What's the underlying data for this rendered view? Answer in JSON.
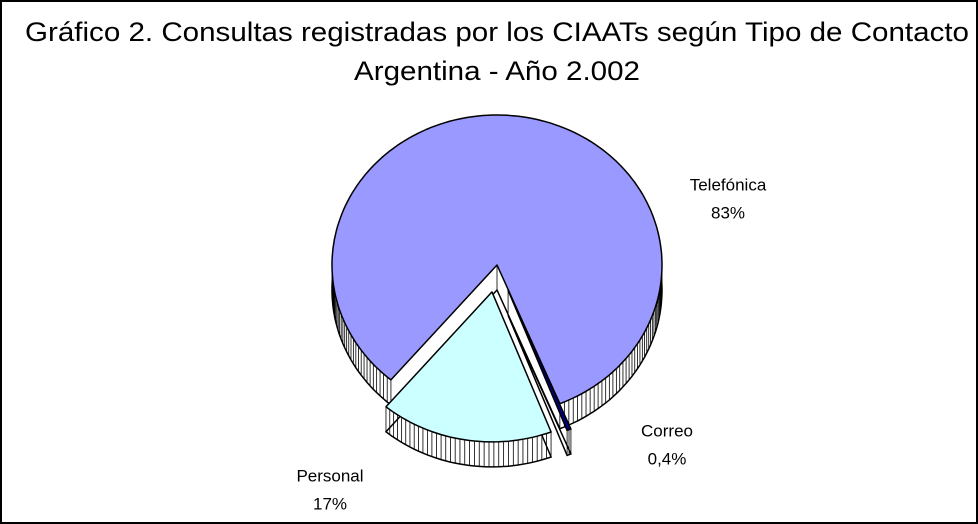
{
  "chart_data": {
    "type": "pie",
    "title": "Gráfico 2.  Consultas registradas por los CIAATs según Tipo de Contacto",
    "subtitle": "Argentina - Año 2.002",
    "categories": [
      "Telefónica",
      "Correo",
      "Personal"
    ],
    "values": [
      83,
      0.4,
      17
    ],
    "value_labels": [
      "83%",
      "0,4%",
      "17%"
    ],
    "colors": [
      "#9999ff",
      "#000080",
      "#ccffff"
    ]
  }
}
